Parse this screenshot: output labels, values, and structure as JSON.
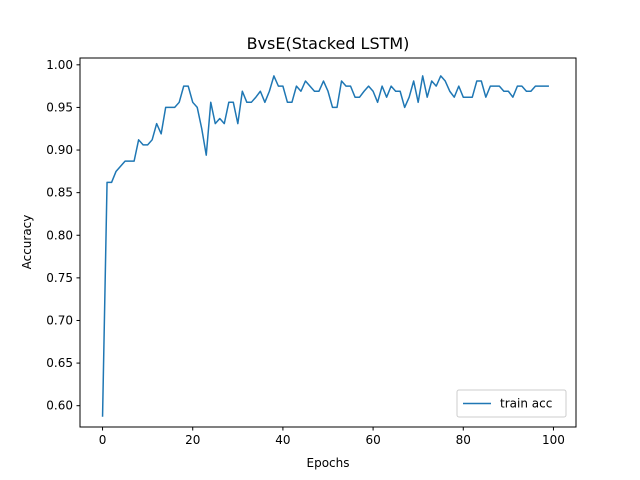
{
  "chart_data": {
    "type": "line",
    "title": "BvsE(Stacked LSTM)",
    "xlabel": "Epochs",
    "ylabel": "Accuracy",
    "xlim": [
      -5,
      105
    ],
    "ylim": [
      0.575,
      1.008
    ],
    "xticks": [
      0,
      20,
      40,
      60,
      80,
      100
    ],
    "yticks": [
      0.6,
      0.65,
      0.7,
      0.75,
      0.8,
      0.85,
      0.9,
      0.95,
      1.0
    ],
    "grid": false,
    "legend_position": "bottom-right",
    "colors": {
      "series": "#1f77b4"
    },
    "series": [
      {
        "name": "train acc",
        "x": [
          0,
          1,
          2,
          3,
          4,
          5,
          6,
          7,
          8,
          9,
          10,
          11,
          12,
          13,
          14,
          15,
          16,
          17,
          18,
          19,
          20,
          21,
          22,
          23,
          24,
          25,
          26,
          27,
          28,
          29,
          30,
          31,
          32,
          33,
          34,
          35,
          36,
          37,
          38,
          39,
          40,
          41,
          42,
          43,
          44,
          45,
          46,
          47,
          48,
          49,
          50,
          51,
          52,
          53,
          54,
          55,
          56,
          57,
          58,
          59,
          60,
          61,
          62,
          63,
          64,
          65,
          66,
          67,
          68,
          69,
          70,
          71,
          72,
          73,
          74,
          75,
          76,
          77,
          78,
          79,
          80,
          81,
          82,
          83,
          84,
          85,
          86,
          87,
          88,
          89,
          90,
          91,
          92,
          93,
          94,
          95,
          96,
          97,
          98,
          99
        ],
        "values": [
          0.587,
          0.862,
          0.862,
          0.875,
          0.881,
          0.887,
          0.887,
          0.887,
          0.912,
          0.906,
          0.906,
          0.912,
          0.931,
          0.919,
          0.95,
          0.95,
          0.95,
          0.956,
          0.975,
          0.975,
          0.956,
          0.95,
          0.925,
          0.894,
          0.956,
          0.931,
          0.937,
          0.931,
          0.956,
          0.956,
          0.931,
          0.969,
          0.956,
          0.956,
          0.962,
          0.969,
          0.956,
          0.969,
          0.987,
          0.975,
          0.975,
          0.956,
          0.956,
          0.975,
          0.969,
          0.981,
          0.975,
          0.969,
          0.969,
          0.981,
          0.969,
          0.95,
          0.95,
          0.981,
          0.975,
          0.975,
          0.962,
          0.962,
          0.969,
          0.975,
          0.969,
          0.956,
          0.975,
          0.962,
          0.975,
          0.969,
          0.969,
          0.95,
          0.962,
          0.981,
          0.956,
          0.987,
          0.962,
          0.981,
          0.975,
          0.987,
          0.981,
          0.969,
          0.962,
          0.975,
          0.962,
          0.962,
          0.962,
          0.981,
          0.981,
          0.962,
          0.975,
          0.975,
          0.975,
          0.969,
          0.969,
          0.962,
          0.975,
          0.975,
          0.969,
          0.969,
          0.975,
          0.975,
          0.975,
          0.975
        ]
      }
    ]
  }
}
